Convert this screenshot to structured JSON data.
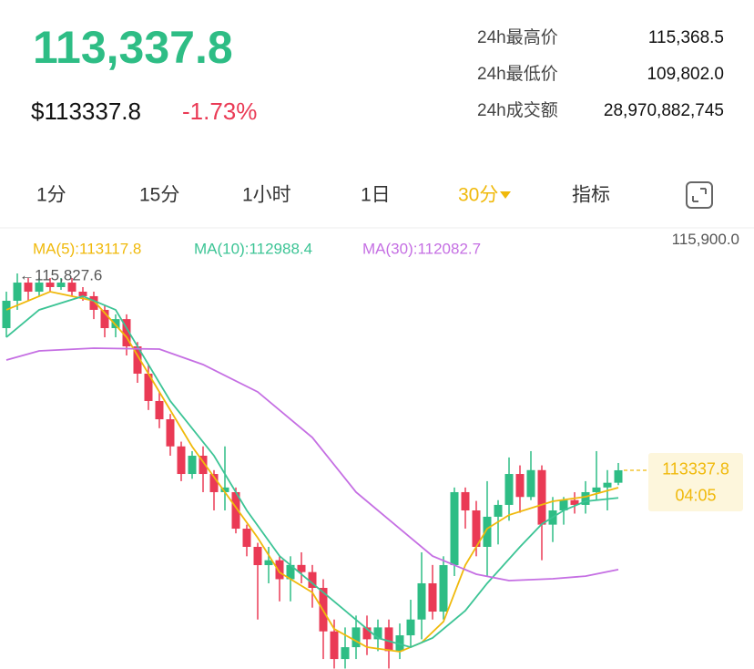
{
  "header": {
    "price": "113,337.8",
    "usd_price": "$113337.8",
    "change": "-1.73%",
    "stats": [
      {
        "label": "24h最高价",
        "value": "115,368.5"
      },
      {
        "label": "24h最低价",
        "value": "109,802.0"
      },
      {
        "label": "24h成交额",
        "value": "28,970,882,745"
      }
    ]
  },
  "tabs": [
    "1分",
    "15分",
    "1小时",
    "1日",
    "30分",
    "指标"
  ],
  "active_tab": 4,
  "chart_data": {
    "type": "candlestick",
    "up_color": "#2ebd85",
    "down_color": "#ea3a55",
    "ylim": [
      110824,
      116312
    ],
    "yticks": [
      {
        "value": 115900,
        "label": "115,900.0"
      }
    ],
    "high_label": "←115,827.6",
    "last_price": {
      "value": 113337.8,
      "color": "#f0b90b",
      "timer": "04:05"
    },
    "open": [
      115136,
      115482,
      115712,
      115597,
      115712,
      115655,
      115712,
      115597,
      115540,
      115367,
      115136,
      115250,
      114905,
      114560,
      114214,
      113983,
      113640,
      113291,
      113522,
      113291,
      113061,
      113061,
      112599,
      112369,
      112138,
      112200,
      111960,
      112140,
      112050,
      111850,
      111300,
      110950,
      111100,
      111350,
      111200,
      111350,
      111050,
      111250,
      111450,
      111908,
      111550,
      112138,
      113061,
      112830,
      112369,
      112750,
      112900,
      113291,
      113000,
      113340,
      112650,
      112830,
      112960,
      112900,
      113061,
      113120,
      113180
    ],
    "high": [
      115597,
      115827.6,
      115770,
      115770,
      115770,
      115770,
      115770,
      115655,
      115597,
      115425,
      115310,
      115310,
      114960,
      114675,
      114330,
      114050,
      113700,
      113580,
      113640,
      113340,
      113640,
      113120,
      112650,
      112420,
      112369,
      112250,
      112250,
      112300,
      112140,
      111960,
      111450,
      111350,
      111500,
      111500,
      111450,
      111450,
      111400,
      111700,
      112300,
      112140,
      112250,
      113120,
      113120,
      112950,
      113200,
      112960,
      113500,
      113400,
      113580,
      113400,
      113000,
      113000,
      113060,
      113200,
      113580,
      113340,
      113430
    ],
    "low": [
      115020,
      115367,
      115482,
      115540,
      115597,
      115620,
      115540,
      115482,
      115250,
      115020,
      115020,
      114790,
      114444,
      114100,
      113870,
      113522,
      113200,
      113230,
      113061,
      112830,
      112830,
      112540,
      112250,
      111450,
      111908,
      111680,
      111680,
      111908,
      111600,
      110950,
      110830,
      110830,
      110950,
      111000,
      111050,
      110830,
      110950,
      111100,
      111200,
      111450,
      111450,
      112000,
      112600,
      112250,
      112000,
      112400,
      112700,
      112800,
      112960,
      112200,
      112430,
      112650,
      112790,
      112790,
      112960,
      112830,
      113150
    ],
    "close": [
      115482,
      115712,
      115597,
      115712,
      115655,
      115712,
      115597,
      115540,
      115367,
      115136,
      115250,
      114905,
      114560,
      114214,
      113983,
      113640,
      113291,
      113522,
      113291,
      113061,
      113120,
      112599,
      112369,
      112138,
      112200,
      111960,
      112140,
      112050,
      111850,
      111300,
      110950,
      111100,
      111350,
      111200,
      111350,
      111050,
      111250,
      111450,
      111908,
      111550,
      112138,
      113061,
      112830,
      112369,
      112750,
      112900,
      113291,
      113000,
      113340,
      112650,
      112830,
      112960,
      112900,
      113061,
      113120,
      113180,
      113337.8
    ],
    "series": [
      {
        "name": "MA(5):113117.8",
        "color": "#f0b90b",
        "x": [
          0,
          4,
          8,
          11,
          14,
          17,
          20,
          23,
          25,
          28,
          30,
          33,
          36,
          38,
          40,
          42,
          44,
          46,
          50,
          53,
          56
        ],
        "values": [
          115367,
          115597,
          115482,
          115021,
          114329,
          113637,
          113061,
          112484,
          112046,
          111792,
          111331,
          111100,
          111043,
          111158,
          111423,
          112138,
          112599,
          112772,
          112945,
          113003,
          113117.8
        ]
      },
      {
        "name": "MA(10):112988.4",
        "color": "#3cc495",
        "x": [
          0,
          3,
          7,
          10,
          12,
          15,
          19,
          22,
          25,
          28,
          31,
          34,
          37,
          39,
          42,
          44,
          47,
          49,
          51,
          53,
          56
        ],
        "values": [
          115021,
          115367,
          115540,
          115367,
          114905,
          114214,
          113522,
          112830,
          112253,
          111908,
          111562,
          111216,
          111100,
          111216,
          111562,
          111908,
          112369,
          112657,
          112830,
          112945,
          112988.4
        ]
      },
      {
        "name": "MA(30):112082.7",
        "color": "#c56fe3",
        "x": [
          0,
          3,
          8,
          14,
          18,
          23,
          28,
          32,
          36,
          39,
          43,
          46,
          50,
          53,
          56
        ],
        "values": [
          114732,
          114848,
          114882,
          114871,
          114675,
          114329,
          113752,
          113061,
          112599,
          112253,
          112023,
          111942,
          111965,
          111999,
          112082.7
        ]
      }
    ]
  }
}
